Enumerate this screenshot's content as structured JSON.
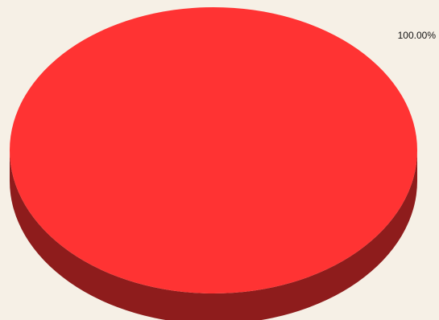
{
  "chart_data": {
    "type": "pie",
    "style": "3d",
    "slices": [
      {
        "value": 100,
        "label": "100.00%",
        "color": "#ff3333",
        "side_color": "#8e1c1c"
      }
    ],
    "title": "",
    "legend": "none"
  },
  "colors": {
    "background": "#f6f0e6"
  }
}
